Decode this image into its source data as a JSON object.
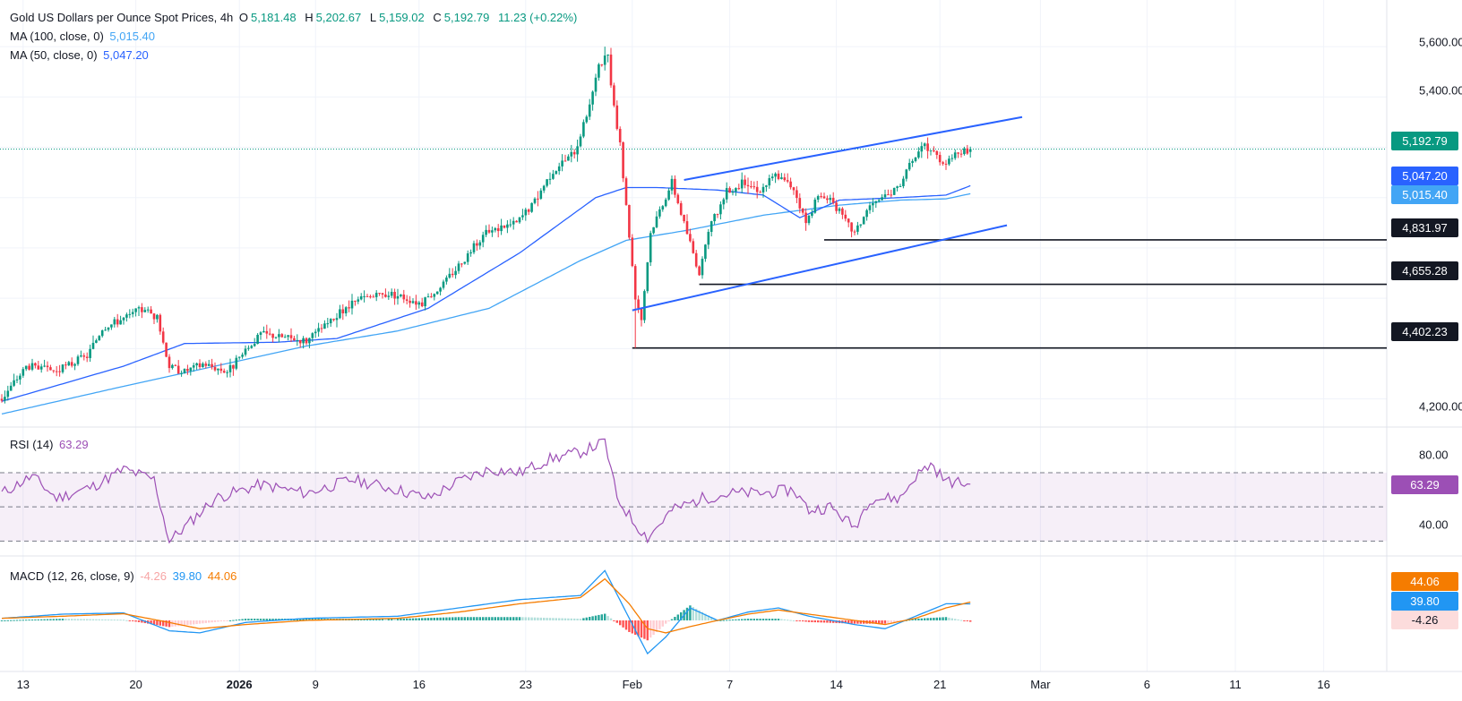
{
  "header": {
    "title": "Gold US Dollars per Ounce Spot Prices, 4h",
    "open_key": "O",
    "open": "5,181.48",
    "high_key": "H",
    "high": "5,202.67",
    "low_key": "L",
    "low": "5,159.02",
    "close_key": "C",
    "close": "5,192.79",
    "change": "11.23 (+0.22%)"
  },
  "ma100": {
    "label": "MA (100, close, 0)",
    "value": "5,015.40"
  },
  "ma50": {
    "label": "MA (50, close, 0)",
    "value": "5,047.20"
  },
  "rsi": {
    "label": "RSI (14)",
    "value": "63.29"
  },
  "macd": {
    "label": "MACD (12, 26, close, 9)",
    "hist": "-4.26",
    "macd": "39.80",
    "signal": "44.06"
  },
  "price_badges": {
    "last": "5,192.79",
    "ma50": "5,047.20",
    "ma100": "5,015.40",
    "support1": "4,831.97",
    "support2": "4,655.28",
    "support3": "4,402.23"
  },
  "macd_badges": {
    "signal": "44.06",
    "macd": "39.80",
    "hist": "-4.26"
  },
  "rsi_badge": "63.29",
  "colors": {
    "up": "#089981",
    "down": "#f23645",
    "ma100": "#42a5f5",
    "ma50": "#2962ff",
    "trendline": "#2962ff",
    "rsi": "#9c4fb5",
    "macd": "#2196f3",
    "signal": "#f57c00",
    "last_badge": "#089981",
    "level_badge": "#131722"
  },
  "chart_data": [
    {
      "type": "candlestick",
      "title": "Gold US Dollars per Ounce Spot Prices, 4h",
      "ylim": [
        4120,
        5700
      ],
      "price_ticks": [
        "5,600.00",
        "5,400.00",
        "4,200.00"
      ],
      "price_tick_values": [
        5600,
        5400,
        4200
      ],
      "x_ticks": [
        {
          "label": "13",
          "bold": false,
          "bar": 7
        },
        {
          "label": "20",
          "bold": false,
          "bar": 44
        },
        {
          "label": "2026",
          "bold": true,
          "bar": 78
        },
        {
          "label": "9",
          "bold": false,
          "bar": 103
        },
        {
          "label": "16",
          "bold": false,
          "bar": 137
        },
        {
          "label": "23",
          "bold": false,
          "bar": 172
        },
        {
          "label": "Feb",
          "bold": false,
          "bar": 207
        },
        {
          "label": "7",
          "bold": false,
          "bar": 239
        },
        {
          "label": "14",
          "bold": false,
          "bar": 274
        },
        {
          "label": "21",
          "bold": false,
          "bar": 308
        },
        {
          "label": "Mar",
          "bold": false,
          "bar": 341
        },
        {
          "label": "6",
          "bold": false,
          "bar": 376
        },
        {
          "label": "11",
          "bold": false,
          "bar": 405
        },
        {
          "label": "16",
          "bold": false,
          "bar": 434
        }
      ],
      "anchors": [
        [
          0,
          4200
        ],
        [
          8,
          4330
        ],
        [
          18,
          4310
        ],
        [
          28,
          4370
        ],
        [
          33,
          4480
        ],
        [
          40,
          4520
        ],
        [
          47,
          4560
        ],
        [
          51,
          4520
        ],
        [
          55,
          4330
        ],
        [
          60,
          4310
        ],
        [
          66,
          4340
        ],
        [
          74,
          4310
        ],
        [
          78,
          4360
        ],
        [
          85,
          4460
        ],
        [
          100,
          4430
        ],
        [
          110,
          4530
        ],
        [
          118,
          4600
        ],
        [
          128,
          4620
        ],
        [
          138,
          4580
        ],
        [
          145,
          4660
        ],
        [
          152,
          4760
        ],
        [
          158,
          4850
        ],
        [
          163,
          4880
        ],
        [
          169,
          4900
        ],
        [
          174,
          4970
        ],
        [
          181,
          5110
        ],
        [
          188,
          5180
        ],
        [
          192,
          5330
        ],
        [
          196,
          5520
        ],
        [
          199,
          5560
        ],
        [
          201,
          5350
        ],
        [
          203,
          5200
        ],
        [
          206,
          4850
        ],
        [
          208,
          4610
        ],
        [
          210,
          4520
        ],
        [
          213,
          4860
        ],
        [
          216,
          4950
        ],
        [
          220,
          5060
        ],
        [
          224,
          4900
        ],
        [
          229,
          4700
        ],
        [
          233,
          4900
        ],
        [
          238,
          5020
        ],
        [
          244,
          5060
        ],
        [
          249,
          5030
        ],
        [
          254,
          5090
        ],
        [
          260,
          5040
        ],
        [
          264,
          4900
        ],
        [
          268,
          5000
        ],
        [
          272,
          5000
        ],
        [
          276,
          4920
        ],
        [
          280,
          4860
        ],
        [
          285,
          4970
        ],
        [
          289,
          4990
        ],
        [
          294,
          5040
        ],
        [
          299,
          5140
        ],
        [
          303,
          5210
        ],
        [
          306,
          5180
        ],
        [
          309,
          5140
        ],
        [
          314,
          5180
        ],
        [
          318,
          5192.79
        ]
      ],
      "ma50": [
        [
          0,
          4190
        ],
        [
          40,
          4330
        ],
        [
          60,
          4420
        ],
        [
          90,
          4425
        ],
        [
          110,
          4440
        ],
        [
          140,
          4560
        ],
        [
          170,
          4780
        ],
        [
          195,
          5000
        ],
        [
          205,
          5040
        ],
        [
          215,
          5040
        ],
        [
          235,
          5030
        ],
        [
          250,
          5010
        ],
        [
          262,
          4920
        ],
        [
          275,
          4990
        ],
        [
          295,
          5000
        ],
        [
          310,
          5010
        ],
        [
          318,
          5047.2
        ]
      ],
      "ma100": [
        [
          0,
          4140
        ],
        [
          40,
          4250
        ],
        [
          70,
          4330
        ],
        [
          100,
          4410
        ],
        [
          130,
          4470
        ],
        [
          160,
          4560
        ],
        [
          190,
          4750
        ],
        [
          205,
          4830
        ],
        [
          225,
          4870
        ],
        [
          250,
          4930
        ],
        [
          275,
          4970
        ],
        [
          295,
          4990
        ],
        [
          310,
          4995
        ],
        [
          318,
          5015.4
        ]
      ],
      "trendlines": [
        {
          "from": [
            207,
            4552
          ],
          "to": [
            330,
            4890
          ]
        },
        {
          "from": [
            224,
            5070
          ],
          "to": [
            335,
            5320
          ]
        }
      ],
      "levels": [
        {
          "value": 4831.97,
          "from_bar": 270,
          "label": "4,831.97"
        },
        {
          "value": 4655.28,
          "from_bar": 229,
          "label": "4,655.28"
        },
        {
          "value": 4402.23,
          "from_bar": 207,
          "label": "4,402.23"
        }
      ],
      "last_price": 5192.79,
      "last_bar": 318,
      "total_bars": 455
    },
    {
      "type": "line",
      "title": "RSI (14)",
      "ylim": [
        26,
        92
      ],
      "y_ticks": [
        "80.00",
        "40.00"
      ],
      "y_tick_values": [
        80,
        40
      ],
      "bands": [
        70,
        50,
        30
      ],
      "values_anchor": [
        [
          0,
          58
        ],
        [
          10,
          68
        ],
        [
          18,
          55
        ],
        [
          30,
          62
        ],
        [
          40,
          72
        ],
        [
          50,
          66
        ],
        [
          55,
          30
        ],
        [
          60,
          38
        ],
        [
          70,
          55
        ],
        [
          85,
          63
        ],
        [
          100,
          58
        ],
        [
          115,
          66
        ],
        [
          130,
          60
        ],
        [
          140,
          55
        ],
        [
          150,
          65
        ],
        [
          160,
          72
        ],
        [
          170,
          70
        ],
        [
          180,
          78
        ],
        [
          190,
          82
        ],
        [
          198,
          88
        ],
        [
          202,
          55
        ],
        [
          208,
          40
        ],
        [
          212,
          32
        ],
        [
          220,
          48
        ],
        [
          230,
          55
        ],
        [
          240,
          58
        ],
        [
          250,
          58
        ],
        [
          260,
          60
        ],
        [
          265,
          48
        ],
        [
          272,
          50
        ],
        [
          280,
          38
        ],
        [
          285,
          55
        ],
        [
          295,
          55
        ],
        [
          300,
          68
        ],
        [
          305,
          75
        ],
        [
          310,
          65
        ],
        [
          318,
          63.29
        ]
      ]
    },
    {
      "type": "line",
      "title": "MACD (12, 26, close, 9)",
      "ylim": [
        -110,
        140
      ],
      "macd_anchor": [
        [
          0,
          5
        ],
        [
          20,
          15
        ],
        [
          40,
          18
        ],
        [
          55,
          -25
        ],
        [
          65,
          -30
        ],
        [
          80,
          -5
        ],
        [
          100,
          5
        ],
        [
          130,
          10
        ],
        [
          150,
          30
        ],
        [
          170,
          50
        ],
        [
          190,
          60
        ],
        [
          198,
          120
        ],
        [
          206,
          5
        ],
        [
          212,
          -80
        ],
        [
          218,
          -40
        ],
        [
          226,
          30
        ],
        [
          235,
          0
        ],
        [
          245,
          20
        ],
        [
          255,
          30
        ],
        [
          265,
          10
        ],
        [
          280,
          -10
        ],
        [
          290,
          -20
        ],
        [
          300,
          10
        ],
        [
          310,
          40
        ],
        [
          318,
          39.8
        ]
      ],
      "signal_anchor": [
        [
          0,
          5
        ],
        [
          20,
          10
        ],
        [
          40,
          16
        ],
        [
          55,
          -5
        ],
        [
          65,
          -20
        ],
        [
          80,
          -10
        ],
        [
          100,
          0
        ],
        [
          130,
          5
        ],
        [
          150,
          20
        ],
        [
          170,
          40
        ],
        [
          190,
          55
        ],
        [
          198,
          100
        ],
        [
          206,
          40
        ],
        [
          212,
          -20
        ],
        [
          218,
          -30
        ],
        [
          226,
          -15
        ],
        [
          235,
          0
        ],
        [
          245,
          15
        ],
        [
          255,
          25
        ],
        [
          265,
          15
        ],
        [
          280,
          0
        ],
        [
          290,
          -10
        ],
        [
          300,
          5
        ],
        [
          310,
          30
        ],
        [
          318,
          44.06
        ]
      ],
      "last_hist": -4.26
    }
  ]
}
